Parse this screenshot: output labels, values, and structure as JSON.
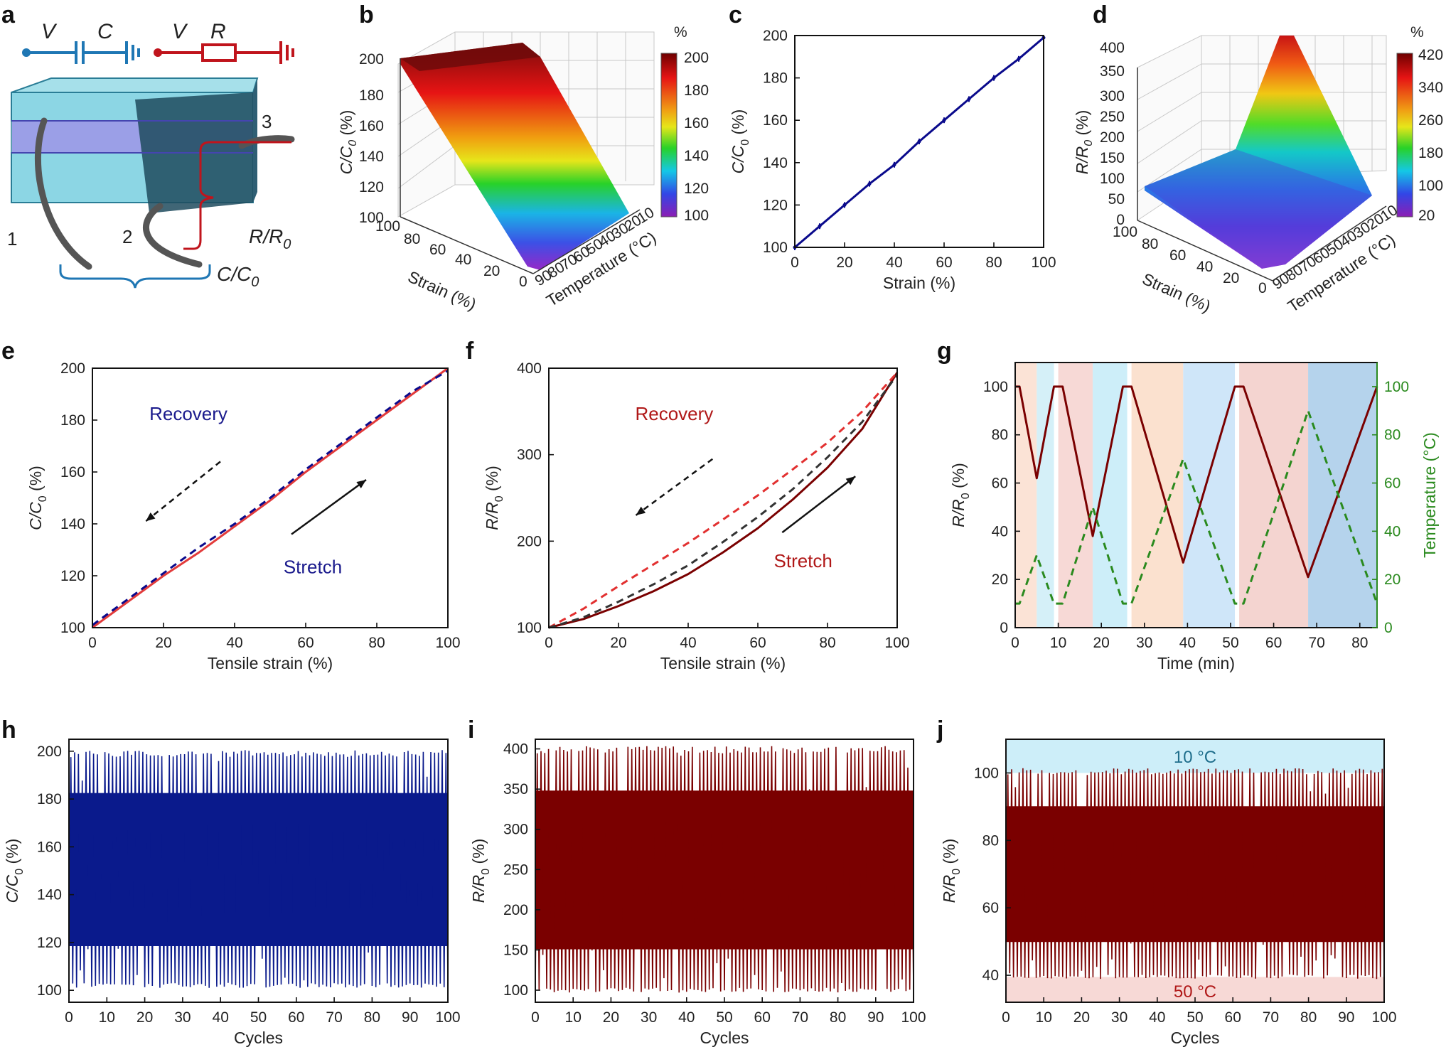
{
  "panel_letters": [
    "a",
    "b",
    "c",
    "d",
    "e",
    "f",
    "g",
    "h",
    "i",
    "j"
  ],
  "schematic": {
    "cap_labels": {
      "v": "V",
      "c": "C"
    },
    "res_labels": {
      "v": "V",
      "r": "R"
    },
    "electrodes": [
      "1",
      "2",
      "3"
    ],
    "cap_readout": {
      "main": "C/C",
      "sub": "0"
    },
    "res_readout": {
      "main": "R/R",
      "sub": "0"
    },
    "colors": {
      "cap": "#1f77b4",
      "res": "#c0141c",
      "gel": "#8fd3e0",
      "gel_dark": "#2a6f86"
    }
  },
  "surfaces": {
    "b": {
      "zlabel": {
        "main": "C/C",
        "sub": "0",
        "unit": " (%)"
      },
      "zticks": [
        "100",
        "120",
        "140",
        "160",
        "180",
        "200"
      ],
      "strain_ticks": [
        "100",
        "80",
        "60",
        "40",
        "20",
        "0"
      ],
      "temp_ticks": [
        "90",
        "80",
        "70",
        "60",
        "50",
        "40",
        "30",
        "20",
        "10"
      ],
      "strain_label": "Strain (%)",
      "temp_label": "Temperature (°C)",
      "colorbar": {
        "title": "%",
        "ticks": [
          "200",
          "180",
          "160",
          "140",
          "120",
          "100"
        ]
      }
    },
    "d": {
      "zlabel": {
        "main": "R/R",
        "sub": "0",
        "unit": " (%)"
      },
      "zticks": [
        "0",
        "50",
        "100",
        "150",
        "200",
        "250",
        "300",
        "350",
        "400"
      ],
      "strain_ticks": [
        "100",
        "80",
        "60",
        "40",
        "20",
        "0"
      ],
      "temp_ticks": [
        "90",
        "80",
        "70",
        "60",
        "50",
        "40",
        "30",
        "20",
        "10"
      ],
      "strain_label": "Strain (%)",
      "temp_label": "Temperature (°C)",
      "colorbar": {
        "title": "%",
        "ticks": [
          "420",
          "340",
          "260",
          "180",
          "100",
          "20"
        ]
      }
    }
  },
  "chart_data": [
    {
      "id": "c",
      "type": "line",
      "xlabel": "Strain (%)",
      "ylabel": {
        "main": "C/C",
        "sub": "0",
        "unit": " (%)"
      },
      "xlim": [
        0,
        100
      ],
      "ylim": [
        100,
        200
      ],
      "xticks": [
        0,
        20,
        40,
        60,
        80,
        100
      ],
      "yticks": [
        100,
        120,
        140,
        160,
        180,
        200
      ],
      "series": [
        {
          "name": "C/C0",
          "color": "#0a0a8c",
          "x": [
            0,
            10,
            20,
            30,
            40,
            50,
            60,
            70,
            80,
            90,
            100
          ],
          "y": [
            100,
            110,
            120,
            130,
            139,
            150,
            160,
            170,
            180,
            189,
            199
          ]
        }
      ]
    },
    {
      "id": "e",
      "type": "line",
      "xlabel": "Tensile strain (%)",
      "ylabel": {
        "main": "C/C",
        "sub": "0",
        "unit": " (%)"
      },
      "xlim": [
        0,
        100
      ],
      "ylim": [
        100,
        200
      ],
      "xticks": [
        0,
        20,
        40,
        60,
        80,
        100
      ],
      "yticks": [
        100,
        120,
        140,
        160,
        180,
        200
      ],
      "annotations": {
        "recovery": "Recovery",
        "stretch": "Stretch",
        "recovery_color": "#1a1a8c",
        "stretch_color": "#1a1a8c"
      },
      "series": [
        {
          "name": "Stretch",
          "color": "#e23b3b",
          "dash": false,
          "x": [
            0,
            10,
            20,
            30,
            40,
            50,
            60,
            70,
            80,
            90,
            100
          ],
          "y": [
            100,
            110,
            120,
            129,
            139,
            149,
            160,
            170,
            180,
            190,
            200
          ]
        },
        {
          "name": "Recovery",
          "color": "#0a0a8c",
          "dash": true,
          "x": [
            0,
            10,
            20,
            30,
            40,
            50,
            60,
            70,
            80,
            90,
            100
          ],
          "y": [
            101,
            111,
            121,
            131,
            140,
            150,
            161,
            171,
            181,
            191,
            199
          ]
        }
      ]
    },
    {
      "id": "f",
      "type": "line",
      "xlabel": "Tensile strain (%)",
      "ylabel": {
        "main": "R/R",
        "sub": "0",
        "unit": " (%)"
      },
      "xlim": [
        0,
        100
      ],
      "ylim": [
        100,
        400
      ],
      "xticks": [
        0,
        20,
        40,
        60,
        80,
        100
      ],
      "yticks": [
        100,
        200,
        300,
        400
      ],
      "annotations": {
        "recovery": "Recovery",
        "stretch": "Stretch",
        "recovery_color": "#b01818",
        "stretch_color": "#b01818"
      },
      "series": [
        {
          "name": "Stretch",
          "color": "#7a0000",
          "dash": false,
          "x": [
            0,
            10,
            20,
            30,
            40,
            50,
            60,
            70,
            80,
            90,
            100
          ],
          "y": [
            100,
            110,
            125,
            142,
            162,
            187,
            215,
            248,
            285,
            330,
            395
          ]
        },
        {
          "name": "Recovery (1)",
          "color": "#e23030",
          "dash": true,
          "x": [
            0,
            10,
            20,
            30,
            40,
            50,
            60,
            70,
            80,
            90,
            100
          ],
          "y": [
            100,
            122,
            148,
            173,
            198,
            225,
            253,
            283,
            314,
            350,
            395
          ]
        },
        {
          "name": "Recovery (2)",
          "color": "#333333",
          "dash": true,
          "x": [
            0,
            10,
            20,
            30,
            40,
            50,
            60,
            70,
            80,
            90,
            100
          ],
          "y": [
            100,
            112,
            130,
            150,
            172,
            199,
            228,
            260,
            297,
            338,
            392
          ]
        }
      ]
    },
    {
      "id": "g",
      "type": "line",
      "xlabel": "Time (min)",
      "ylabel": {
        "main": "R/R",
        "sub": "0",
        "unit": " (%)"
      },
      "y2label": "Temperature (°C)",
      "xlim": [
        0,
        84
      ],
      "ylim": [
        0,
        110
      ],
      "y2lim": [
        0,
        110
      ],
      "xticks": [
        0,
        10,
        20,
        30,
        40,
        50,
        60,
        70,
        80
      ],
      "yticks": [
        0,
        20,
        40,
        60,
        80,
        100
      ],
      "y2ticks": [
        0,
        20,
        40,
        60,
        80,
        100
      ],
      "bands": [
        {
          "x0": 0,
          "x1": 5,
          "color": "#fbe3d6"
        },
        {
          "x0": 5,
          "x1": 9,
          "color": "#d5f0f8"
        },
        {
          "x0": 10,
          "x1": 18,
          "color": "#f7d9d6"
        },
        {
          "x0": 18,
          "x1": 26,
          "color": "#cdeef9"
        },
        {
          "x0": 27,
          "x1": 39,
          "color": "#fbe1cf"
        },
        {
          "x0": 39,
          "x1": 51,
          "color": "#cfe6f9"
        },
        {
          "x0": 52,
          "x1": 68,
          "color": "#f4d4d0"
        },
        {
          "x0": 68,
          "x1": 84,
          "color": "#b5d3ec"
        }
      ],
      "series": [
        {
          "name": "R/R0",
          "color": "#7a0000",
          "dash": false,
          "x": [
            0,
            1,
            5,
            9,
            10,
            11,
            18,
            25,
            26,
            27,
            39,
            51,
            52,
            53,
            68,
            84
          ],
          "y": [
            100,
            100,
            62,
            100,
            100,
            100,
            38,
            100,
            100,
            100,
            27,
            100,
            100,
            100,
            21,
            100
          ]
        },
        {
          "name": "Temperature",
          "color": "#2a8a1e",
          "dash": true,
          "axis": "y2",
          "x": [
            0,
            1,
            5,
            9,
            10,
            11,
            18,
            25,
            26,
            27,
            39,
            51,
            52,
            53,
            68,
            84
          ],
          "y": [
            10,
            10,
            30,
            10,
            10,
            10,
            50,
            10,
            10,
            10,
            70,
            10,
            10,
            10,
            90,
            10
          ]
        }
      ]
    },
    {
      "id": "h",
      "type": "line",
      "xlabel": "Cycles",
      "ylabel": {
        "main": "C/C",
        "sub": "0",
        "unit": " (%)"
      },
      "xlim": [
        0,
        100
      ],
      "ylim": [
        95,
        205
      ],
      "xticks": [
        0,
        10,
        20,
        30,
        40,
        50,
        60,
        70,
        80,
        90,
        100
      ],
      "yticks": [
        100,
        120,
        140,
        160,
        180,
        200
      ],
      "series": [
        {
          "name": "C/C0",
          "color": "#0a1a8c",
          "cycles": 100,
          "low": 102,
          "high": 199
        }
      ]
    },
    {
      "id": "i",
      "type": "line",
      "xlabel": "Cycles",
      "ylabel": {
        "main": "R/R",
        "sub": "0",
        "unit": " (%)"
      },
      "xlim": [
        0,
        100
      ],
      "ylim": [
        85,
        412
      ],
      "xticks": [
        0,
        10,
        20,
        30,
        40,
        50,
        60,
        70,
        80,
        90,
        100
      ],
      "yticks": [
        100,
        150,
        200,
        250,
        300,
        350,
        400
      ],
      "series": [
        {
          "name": "R/R0",
          "color": "#7a0000",
          "cycles": 100,
          "low": 100,
          "high": 399
        }
      ]
    },
    {
      "id": "j",
      "type": "line",
      "xlabel": "Cycles",
      "ylabel": {
        "main": "R/R",
        "sub": "0",
        "unit": " (%)"
      },
      "xlim": [
        0,
        100
      ],
      "ylim": [
        32,
        110
      ],
      "xticks": [
        0,
        10,
        20,
        30,
        40,
        50,
        60,
        70,
        80,
        90,
        100
      ],
      "yticks": [
        40,
        60,
        80,
        100
      ],
      "annotations": {
        "top": "10 °C",
        "bottom": "50 °C",
        "top_color": "#1f6e8c",
        "bottom_color": "#b01818"
      },
      "bands": [
        {
          "y0": 100,
          "y1": 110,
          "color": "#cdeef9"
        },
        {
          "y0": 32,
          "y1": 39.5,
          "color": "#f7d9d6"
        }
      ],
      "series": [
        {
          "name": "R/R0",
          "color": "#7a0000",
          "cycles": 100,
          "low": 39.5,
          "high": 100.5
        }
      ]
    }
  ]
}
